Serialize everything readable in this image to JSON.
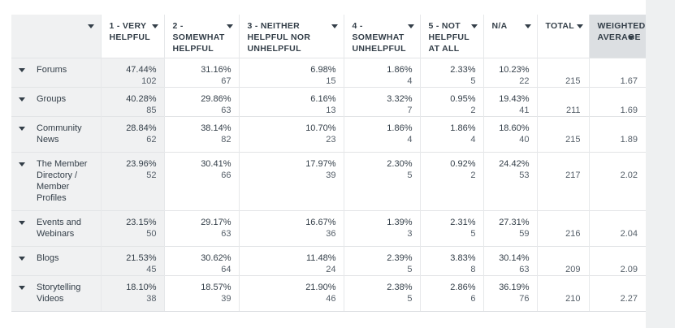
{
  "table": {
    "columns": [
      {
        "label": "1 - VERY HELPFUL"
      },
      {
        "label": "2 - SOMEWHAT HELPFUL"
      },
      {
        "label": "3 - NEITHER HELPFUL NOR UNHELPFUL"
      },
      {
        "label": "4 - SOMEWHAT UNHELPFUL"
      },
      {
        "label": "5 - NOT HELPFUL AT ALL"
      },
      {
        "label": "N/A"
      },
      {
        "label": "TOTAL"
      },
      {
        "label": "WEIGHTED AVERAGE"
      }
    ],
    "rows": [
      {
        "label": "Forums",
        "cells": [
          [
            "47.44%",
            "102"
          ],
          [
            "31.16%",
            "67"
          ],
          [
            "6.98%",
            "15"
          ],
          [
            "1.86%",
            "4"
          ],
          [
            "2.33%",
            "5"
          ],
          [
            "10.23%",
            "22"
          ]
        ],
        "total": "215",
        "weighted_average": "1.67"
      },
      {
        "label": "Groups",
        "cells": [
          [
            "40.28%",
            "85"
          ],
          [
            "29.86%",
            "63"
          ],
          [
            "6.16%",
            "13"
          ],
          [
            "3.32%",
            "7"
          ],
          [
            "0.95%",
            "2"
          ],
          [
            "19.43%",
            "41"
          ]
        ],
        "total": "211",
        "weighted_average": "1.69"
      },
      {
        "label": "Community News",
        "cells": [
          [
            "28.84%",
            "62"
          ],
          [
            "38.14%",
            "82"
          ],
          [
            "10.70%",
            "23"
          ],
          [
            "1.86%",
            "4"
          ],
          [
            "1.86%",
            "4"
          ],
          [
            "18.60%",
            "40"
          ]
        ],
        "total": "215",
        "weighted_average": "1.89"
      },
      {
        "label": "The Member Directory / Member Profiles",
        "cells": [
          [
            "23.96%",
            "52"
          ],
          [
            "30.41%",
            "66"
          ],
          [
            "17.97%",
            "39"
          ],
          [
            "2.30%",
            "5"
          ],
          [
            "0.92%",
            "2"
          ],
          [
            "24.42%",
            "53"
          ]
        ],
        "total": "217",
        "weighted_average": "2.02"
      },
      {
        "label": "Events and Webinars",
        "cells": [
          [
            "23.15%",
            "50"
          ],
          [
            "29.17%",
            "63"
          ],
          [
            "16.67%",
            "36"
          ],
          [
            "1.39%",
            "3"
          ],
          [
            "2.31%",
            "5"
          ],
          [
            "27.31%",
            "59"
          ]
        ],
        "total": "216",
        "weighted_average": "2.04"
      },
      {
        "label": "Blogs",
        "cells": [
          [
            "21.53%",
            "45"
          ],
          [
            "30.62%",
            "64"
          ],
          [
            "11.48%",
            "24"
          ],
          [
            "2.39%",
            "5"
          ],
          [
            "3.83%",
            "8"
          ],
          [
            "30.14%",
            "63"
          ]
        ],
        "total": "209",
        "weighted_average": "2.09"
      },
      {
        "label": "Storytelling Videos",
        "cells": [
          [
            "18.10%",
            "38"
          ],
          [
            "18.57%",
            "39"
          ],
          [
            "21.90%",
            "46"
          ],
          [
            "2.38%",
            "5"
          ],
          [
            "2.86%",
            "6"
          ],
          [
            "36.19%",
            "76"
          ]
        ],
        "total": "210",
        "weighted_average": "2.27"
      }
    ]
  }
}
